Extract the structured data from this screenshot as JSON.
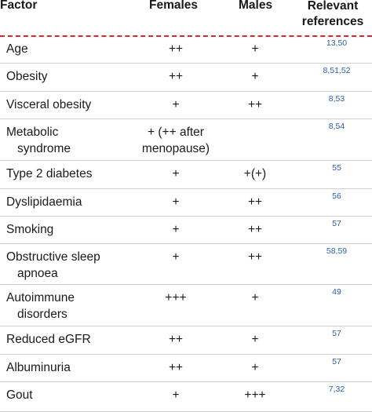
{
  "headers": {
    "factor": "Factor",
    "females": "Females",
    "males": "Males",
    "refs_line1": "Relevant",
    "refs_line2": "references"
  },
  "rows": [
    {
      "factor": [
        "Age"
      ],
      "females": [
        "++"
      ],
      "males": "+",
      "refs": "13,50"
    },
    {
      "factor": [
        "Obesity"
      ],
      "females": [
        "++"
      ],
      "males": "+",
      "refs": "8,51,52"
    },
    {
      "factor": [
        "Visceral obesity"
      ],
      "females": [
        "+"
      ],
      "males": "++",
      "refs": "8,53"
    },
    {
      "factor": [
        "Metabolic",
        "syndrome"
      ],
      "females": [
        "+ (++ after",
        "menopause)"
      ],
      "males": "",
      "refs": "8,54"
    },
    {
      "factor": [
        "Type 2 diabetes"
      ],
      "females": [
        "+"
      ],
      "males": "+(+)",
      "refs": "55"
    },
    {
      "factor": [
        "Dyslipidaemia"
      ],
      "females": [
        "+"
      ],
      "males": "++",
      "refs": "56"
    },
    {
      "factor": [
        "Smoking"
      ],
      "females": [
        "+"
      ],
      "males": "++",
      "refs": "57"
    },
    {
      "factor": [
        "Obstructive sleep",
        "apnoea"
      ],
      "females": [
        "+"
      ],
      "males": "++",
      "refs": "58,59"
    },
    {
      "factor": [
        "Autoimmune",
        "disorders"
      ],
      "females": [
        "+++"
      ],
      "males": "+",
      "refs": "49"
    },
    {
      "factor": [
        "Reduced eGFR"
      ],
      "females": [
        "++"
      ],
      "males": "+",
      "refs": "57"
    },
    {
      "factor": [
        "Albuminuria"
      ],
      "females": [
        "++"
      ],
      "males": "+",
      "refs": "57"
    },
    {
      "factor": [
        "Gout"
      ],
      "females": [
        "+"
      ],
      "males": "+++",
      "refs": "7,32"
    }
  ]
}
